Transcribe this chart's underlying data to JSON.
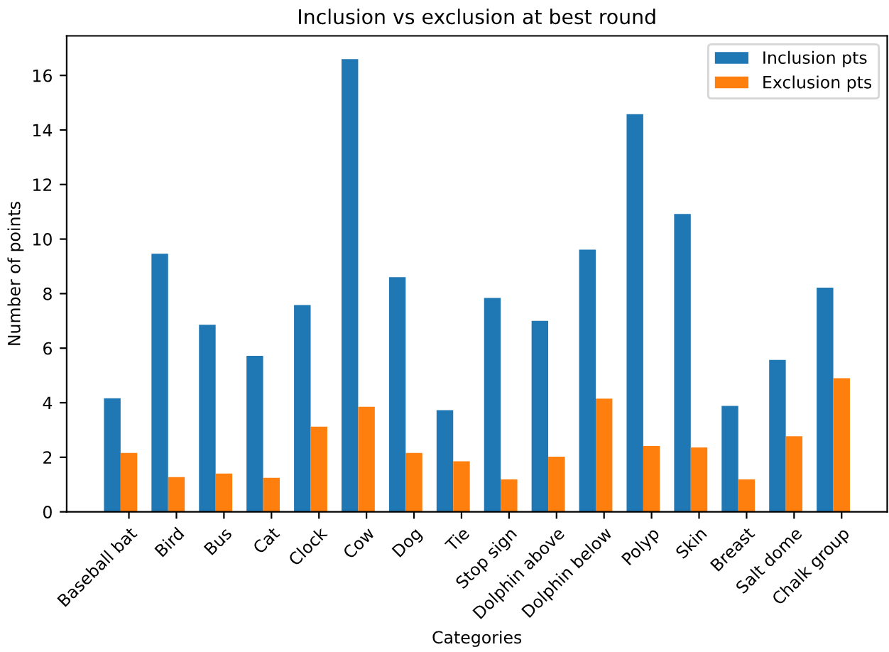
{
  "chart_data": {
    "type": "bar",
    "title": "Inclusion vs exclusion at best round",
    "xlabel": "Categories",
    "ylabel": "Number of points",
    "categories": [
      "Baseball bat",
      "Bird",
      "Bus",
      "Cat",
      "Clock",
      "Cow",
      "Dog",
      "Tie",
      "Stop sign",
      "Dolphin above",
      "Dolphin below",
      "Polyp",
      "Skin",
      "Breast",
      "Salt dome",
      "Chalk group"
    ],
    "series": [
      {
        "name": "Inclusion pts",
        "color": "#1f77b4",
        "values": [
          4.16,
          9.46,
          6.86,
          5.72,
          7.58,
          16.6,
          8.6,
          3.73,
          7.84,
          7.0,
          9.61,
          14.58,
          10.92,
          3.88,
          5.57,
          8.22
        ]
      },
      {
        "name": "Exclusion pts",
        "color": "#ff7f0e",
        "values": [
          2.16,
          1.27,
          1.4,
          1.25,
          3.12,
          3.85,
          2.16,
          1.85,
          1.19,
          2.02,
          4.15,
          2.41,
          2.36,
          1.19,
          2.77,
          4.9
        ]
      }
    ],
    "ylim": [
      0,
      17.45
    ],
    "yticks": [
      0,
      2,
      4,
      6,
      8,
      10,
      12,
      14,
      16
    ],
    "legend": "top right",
    "grid": false
  }
}
